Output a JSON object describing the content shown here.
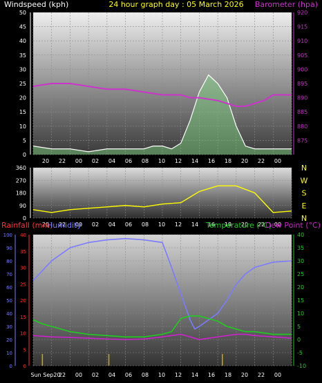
{
  "header": {
    "left_label": "Windspeed (kph)",
    "center_label": "24 hour graph day : 05 March 2026",
    "right_label": "Barometer (hpa)"
  },
  "colors": {
    "background": "#000000",
    "wind_avg": "#ffffff",
    "wind_gust_fill": "#7fd67f",
    "barometer": "#cc33cc",
    "direction": "#ffff00",
    "rain_axis": "#ff3333",
    "humidity": "#7b7bff",
    "temperature": "#22cc22",
    "dewpoint": "#cc22cc",
    "sunrise_marker": "#ccaa00"
  },
  "chart_data": [
    {
      "type": "line",
      "name": "wind-and-pressure",
      "x_ticks": [
        "20",
        "22",
        "00",
        "02",
        "04",
        "06",
        "08",
        "10",
        "12",
        "14",
        "16",
        "18",
        "20",
        "22",
        "00"
      ],
      "ylabel_left": "Windspeed (kph)",
      "ylim_left": [
        0,
        50
      ],
      "y_ticks_left": [
        0,
        5,
        10,
        15,
        20,
        25,
        30,
        35,
        40,
        45,
        50
      ],
      "ylabel_right": "Barometer (hpa)",
      "ylim_right": [
        870,
        920
      ],
      "y_ticks_right": [
        875,
        880,
        885,
        890,
        895,
        900,
        905,
        910,
        915,
        920
      ],
      "grid": true,
      "series": [
        {
          "name": "Windspeed",
          "axis": "left",
          "x_hours": [
            0,
            2,
            4,
            6,
            8,
            10,
            12,
            13,
            14,
            15,
            16,
            17,
            18,
            19,
            20,
            21,
            22,
            23,
            24,
            26,
            28
          ],
          "values": [
            3,
            2,
            2,
            1,
            2,
            2,
            2,
            3,
            3,
            2,
            4,
            12,
            22,
            28,
            25,
            20,
            10,
            3,
            2,
            2,
            2
          ]
        },
        {
          "name": "Barometer",
          "axis": "right",
          "x_hours": [
            0,
            2,
            4,
            6,
            8,
            10,
            12,
            14,
            16,
            17,
            18,
            20,
            21,
            22,
            23,
            24,
            25,
            26,
            27,
            28
          ],
          "values": [
            894,
            895,
            895,
            894,
            893,
            893,
            892,
            891,
            891,
            890,
            890,
            889,
            888,
            887,
            887,
            888,
            889,
            891,
            891,
            891
          ]
        }
      ]
    },
    {
      "type": "line",
      "name": "wind-direction",
      "x_ticks": [
        "20",
        "22",
        "00",
        "02",
        "04",
        "06",
        "08",
        "10",
        "12",
        "14",
        "16",
        "18",
        "20",
        "22",
        "00"
      ],
      "ylim_left": [
        0,
        360
      ],
      "y_ticks_left": [
        0,
        90,
        180,
        270,
        360
      ],
      "right_labels": [
        "N",
        "W",
        "S",
        "E",
        "N"
      ],
      "series": [
        {
          "name": "Direction",
          "x_hours": [
            0,
            2,
            4,
            6,
            8,
            10,
            12,
            14,
            16,
            18,
            20,
            22,
            24,
            26,
            28
          ],
          "values": [
            60,
            40,
            60,
            70,
            80,
            90,
            80,
            100,
            110,
            190,
            230,
            230,
            180,
            40,
            50
          ]
        }
      ]
    },
    {
      "type": "line",
      "name": "temperature-humidity",
      "x_ticks": [
        "Sun Sep20",
        "22",
        "00",
        "02",
        "04",
        "06",
        "08",
        "10",
        "12",
        "14",
        "16",
        "18",
        "20",
        "22",
        "00"
      ],
      "legend": [
        "Rainfall (mm)",
        "Humidity",
        "Temperature (°C)",
        "Dew Point (°C)"
      ],
      "humidity_ylim": [
        0,
        100
      ],
      "humidity_ticks": [
        0,
        10,
        20,
        30,
        40,
        50,
        60,
        70,
        80,
        90,
        100
      ],
      "rain_ylim": [
        0,
        40
      ],
      "rain_ticks": [
        0,
        5,
        10,
        15,
        20,
        25,
        30,
        35,
        40
      ],
      "temp_ylim": [
        -10,
        40
      ],
      "temp_ticks": [
        -10,
        -5,
        0,
        5,
        10,
        15,
        20,
        25,
        30,
        35,
        40
      ],
      "series": [
        {
          "name": "Humidity",
          "axis": "humidity",
          "x_hours": [
            0,
            2,
            4,
            6,
            8,
            10,
            12,
            14,
            15,
            16,
            17,
            17.5,
            18,
            19,
            20,
            21,
            22,
            23,
            24,
            26,
            28
          ],
          "values": [
            65,
            80,
            90,
            94,
            96,
            97,
            96,
            94,
            75,
            55,
            35,
            28,
            30,
            35,
            40,
            50,
            62,
            70,
            75,
            79,
            80
          ]
        },
        {
          "name": "Temperature",
          "axis": "temp",
          "x_hours": [
            0,
            1,
            2,
            4,
            6,
            8,
            10,
            12,
            14,
            15,
            16,
            17,
            18,
            19,
            20,
            21,
            22,
            23,
            24,
            26,
            28
          ],
          "values": [
            7.5,
            6,
            5,
            3,
            2,
            1.5,
            1,
            1,
            2,
            3,
            8,
            9,
            9,
            8,
            7,
            5,
            4,
            3,
            3,
            2,
            2
          ]
        },
        {
          "name": "Dew Point",
          "axis": "temp",
          "x_hours": [
            0,
            2,
            4,
            6,
            8,
            10,
            12,
            14,
            16,
            17,
            18,
            19,
            20,
            21,
            22,
            23,
            24,
            26,
            28
          ],
          "values": [
            1.5,
            1,
            0.8,
            0.5,
            0.2,
            0,
            0.2,
            1,
            2,
            1,
            0,
            0.5,
            1,
            1.5,
            2,
            2,
            1.5,
            1,
            0.5
          ]
        }
      ]
    }
  ]
}
